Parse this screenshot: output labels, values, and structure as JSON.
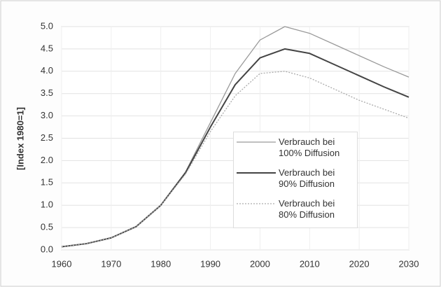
{
  "chart_data": {
    "type": "line",
    "ylabel": "[Index 1980=1]",
    "x": [
      1960,
      1965,
      1970,
      1975,
      1980,
      1985,
      1990,
      1995,
      2000,
      2005,
      2010,
      2015,
      2020,
      2025,
      2030
    ],
    "series": [
      {
        "name": "Verbrauch bei\n100% Diffusion",
        "color": "#9a9a9a",
        "width": 1.3,
        "dash": "none",
        "values": [
          0.07,
          0.14,
          0.27,
          0.52,
          1.0,
          1.75,
          2.85,
          3.95,
          4.7,
          5.0,
          4.85,
          4.6,
          4.35,
          4.1,
          3.87
        ]
      },
      {
        "name": "Verbrauch bei\n90% Diffusion",
        "color": "#444444",
        "width": 2,
        "dash": "none",
        "values": [
          0.07,
          0.14,
          0.27,
          0.52,
          1.0,
          1.73,
          2.75,
          3.7,
          4.3,
          4.5,
          4.4,
          4.15,
          3.9,
          3.65,
          3.42
        ]
      },
      {
        "name": "Verbrauch bei\n80% Diffusion",
        "color": "#aaaaaa",
        "width": 1.3,
        "dash": "2 2",
        "values": [
          0.07,
          0.14,
          0.27,
          0.52,
          1.0,
          1.7,
          2.65,
          3.45,
          3.95,
          4.0,
          3.85,
          3.6,
          3.35,
          3.15,
          2.95
        ]
      }
    ],
    "xlim": [
      1960,
      2030
    ],
    "xticks": [
      1960,
      1970,
      1980,
      1990,
      2000,
      2010,
      2020,
      2030
    ],
    "ylim": [
      0,
      5
    ],
    "yticks": [
      {
        "value": 0,
        "label": "0.0"
      },
      0.5,
      {
        "value": 1,
        "label": "1.0"
      },
      1.5,
      {
        "value": 2,
        "label": "2.0"
      },
      2.5,
      {
        "value": 3,
        "label": "3.0"
      },
      3.5,
      {
        "value": 4,
        "label": "4.0"
      },
      4.5,
      {
        "value": 5,
        "label": "5.0"
      }
    ],
    "grid": true
  }
}
